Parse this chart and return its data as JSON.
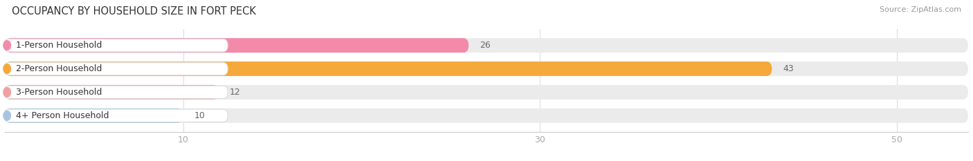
{
  "title": "OCCUPANCY BY HOUSEHOLD SIZE IN FORT PECK",
  "source": "Source: ZipAtlas.com",
  "categories": [
    "1-Person Household",
    "2-Person Household",
    "3-Person Household",
    "4+ Person Household"
  ],
  "values": [
    26,
    43,
    12,
    10
  ],
  "bar_colors": [
    "#f48aaa",
    "#f5a93b",
    "#f0a0a0",
    "#a8c4e0"
  ],
  "bar_bg_color": "#ebebeb",
  "xlim": [
    0,
    54
  ],
  "xticks": [
    10,
    30,
    50
  ],
  "title_fontsize": 10.5,
  "source_fontsize": 8,
  "label_fontsize": 9,
  "value_fontsize": 9,
  "background_color": "#ffffff"
}
